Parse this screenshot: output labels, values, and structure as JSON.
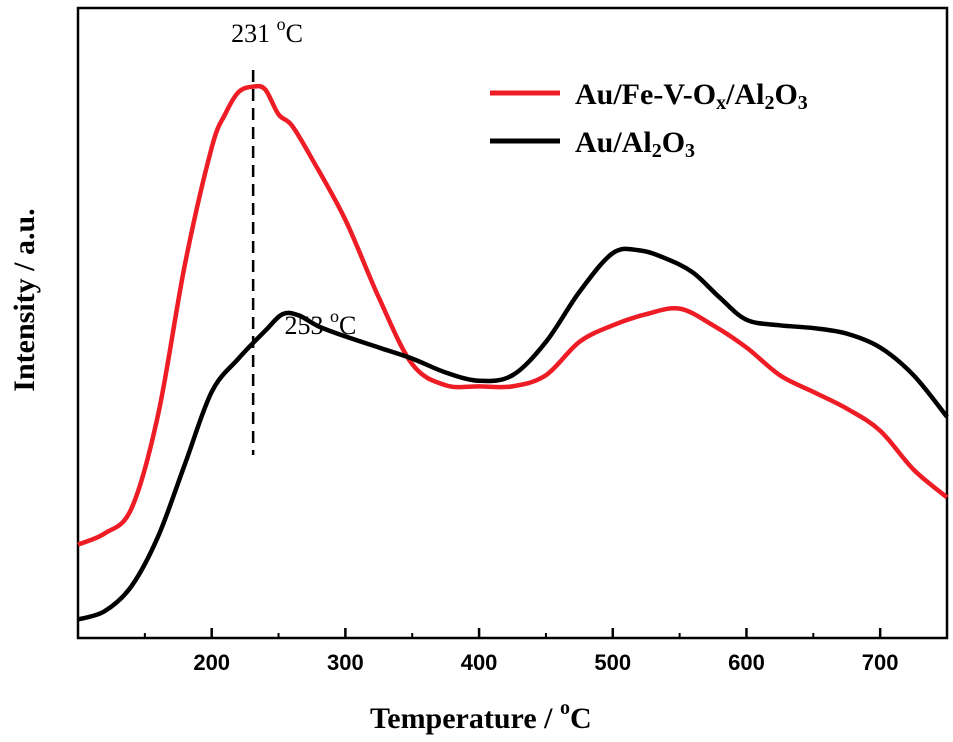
{
  "chart_data": {
    "type": "line",
    "xlabel": "Temperature / °C",
    "ylabel": "Intensity / a.u.",
    "xlim": [
      100,
      750
    ],
    "ylim": [
      0,
      100
    ],
    "xticks": [
      "200",
      "300",
      "400",
      "500",
      "600",
      "700"
    ],
    "grid": false,
    "legend_position": "top-right",
    "series": [
      {
        "name": "Au/Fe-V-Ox/Al2O3",
        "color": "#ee1c25",
        "x": [
          100,
          120,
          140,
          160,
          180,
          200,
          210,
          220,
          231,
          240,
          250,
          260,
          275,
          300,
          325,
          350,
          375,
          400,
          425,
          450,
          475,
          500,
          525,
          550,
          575,
          600,
          625,
          650,
          675,
          700,
          725,
          750
        ],
        "y": [
          14.5,
          16.5,
          21,
          38,
          65,
          86,
          92,
          96,
          97,
          96.5,
          92,
          90,
          84,
          73,
          59,
          47,
          43.2,
          43,
          43,
          45,
          51,
          54,
          56,
          57,
          54,
          50,
          45,
          42,
          39,
          35,
          28,
          23
        ]
      },
      {
        "name": "Au/Al2O3",
        "color": "#000000",
        "x": [
          100,
          120,
          140,
          160,
          180,
          200,
          220,
          240,
          253,
          265,
          280,
          300,
          325,
          350,
          375,
          400,
          425,
          450,
          475,
          500,
          520,
          540,
          560,
          580,
          600,
          625,
          650,
          675,
          700,
          725,
          750
        ],
        "y": [
          1,
          2.5,
          7,
          16,
          29,
          42,
          48,
          53,
          56,
          55.8,
          53.8,
          52,
          50,
          48,
          45.5,
          44,
          45,
          51,
          60,
          67,
          67.5,
          66,
          63.5,
          59,
          55,
          54,
          53.5,
          52.5,
          50,
          45,
          37.5
        ]
      }
    ],
    "annotations": [
      {
        "text": "231 °C",
        "x": 231
      },
      {
        "text": "253 °C",
        "x": 253
      }
    ]
  },
  "legend": {
    "entries": [
      {
        "main": "Au/Fe-V-O",
        "sub1": "x",
        "mid": "/Al",
        "sub2": "2",
        "mid2": "O",
        "sub3": "3"
      },
      {
        "main": "Au/Al",
        "sub1": "2",
        "mid": "O",
        "sub2": "3"
      }
    ]
  },
  "axes": {
    "xlabel_main": "Temperature / ",
    "xlabel_sup": "o",
    "xlabel_unit": "C"
  }
}
